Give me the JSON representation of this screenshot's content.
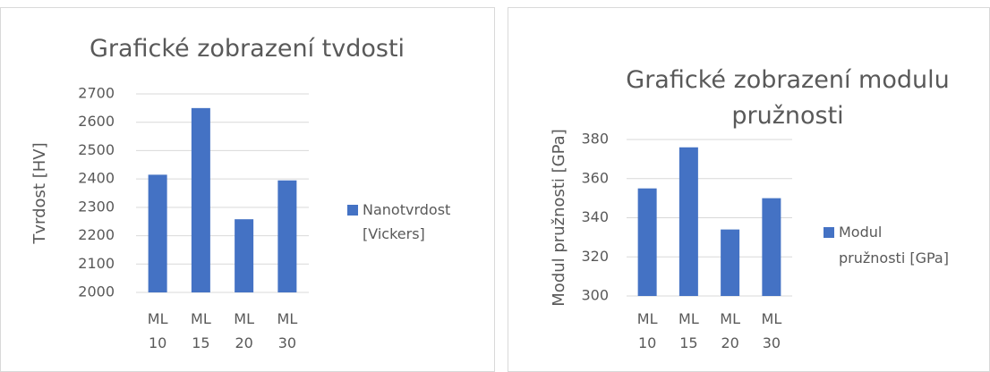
{
  "chart_data": [
    {
      "type": "bar",
      "title": "Grafické zobrazení tvdosti",
      "y_label": "Tvrdost [HV]",
      "categories": [
        "ML 10",
        "ML 15",
        "ML 20",
        "ML 30"
      ],
      "series": [
        {
          "name": "Nanotvrdost [Vickers]",
          "color": "#4472c4",
          "values": [
            2415,
            2650,
            2258,
            2395
          ]
        }
      ],
      "ylim": [
        2000,
        2700
      ],
      "yticks": [
        2000,
        2100,
        2200,
        2300,
        2400,
        2500,
        2600,
        2700
      ],
      "grid": true,
      "legend": "right"
    },
    {
      "type": "bar",
      "title": "Grafické zobrazení modulu pružnosti",
      "y_label": "Modul pružnosti [GPa]",
      "categories": [
        "ML 10",
        "ML 15",
        "ML 20",
        "ML 30"
      ],
      "series": [
        {
          "name": "Modul pružnosti [GPa]",
          "color": "#4472c4",
          "values": [
            355,
            376,
            334,
            350
          ]
        }
      ],
      "ylim": [
        300,
        380
      ],
      "yticks": [
        300,
        320,
        340,
        360,
        380
      ],
      "grid": true,
      "legend": "right"
    }
  ]
}
